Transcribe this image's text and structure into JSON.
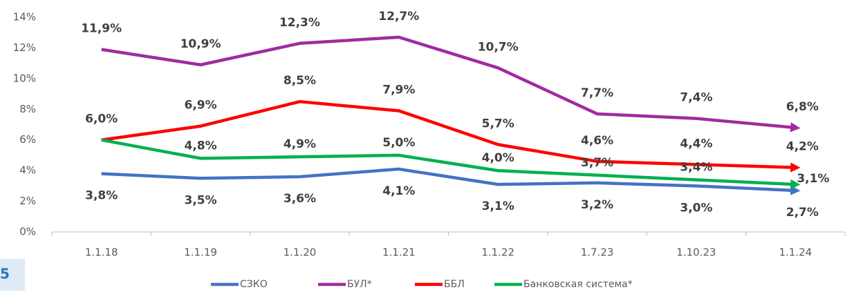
{
  "chart_data": {
    "type": "line",
    "tab_label": "5",
    "categories": [
      "1.1.18",
      "1.1.19",
      "1.1.20",
      "1.1.21",
      "1.1.22",
      "1.7.23",
      "1.10.23",
      "1.1.24"
    ],
    "ylim": [
      0,
      14
    ],
    "yticks": [
      {
        "value": 0,
        "label": "0%"
      },
      {
        "value": 2,
        "label": "2%"
      },
      {
        "value": 4,
        "label": "4%"
      },
      {
        "value": 6,
        "label": "6%"
      },
      {
        "value": 8,
        "label": "8%"
      },
      {
        "value": 10,
        "label": "10%"
      },
      {
        "value": 12,
        "label": "12%"
      },
      {
        "value": 14,
        "label": "14%"
      }
    ],
    "grid": false,
    "legend": "bottom",
    "series": [
      {
        "name": "СЗКО",
        "color": "#4472c4",
        "values": [
          3.8,
          3.5,
          3.6,
          4.1,
          3.1,
          3.2,
          3.0,
          2.7
        ],
        "value_labels": [
          "3,8%",
          "3,5%",
          "3,6%",
          "4,1%",
          "3,1%",
          "3,2%",
          "3,0%",
          "2,7%"
        ]
      },
      {
        "name": "БУЛ*",
        "color": "#a02ba0",
        "values": [
          11.9,
          10.9,
          12.3,
          12.7,
          10.7,
          7.7,
          7.4,
          6.8
        ],
        "value_labels": [
          "11,9%",
          "10,9%",
          "12,3%",
          "12,7%",
          "10,7%",
          "7,7%",
          "7,4%",
          "6,8%"
        ]
      },
      {
        "name": "ББЛ",
        "color": "#ff0000",
        "values": [
          6.0,
          6.9,
          8.5,
          7.9,
          5.7,
          4.6,
          4.4,
          4.2
        ],
        "value_labels": [
          "6,0%",
          "6,9%",
          "8,5%",
          "7,9%",
          "5,7%",
          "4,6%",
          "4,4%",
          "4,2%"
        ]
      },
      {
        "name": "Банковская система*",
        "color": "#00b050",
        "values": [
          6.0,
          4.8,
          4.9,
          5.0,
          4.0,
          3.7,
          3.4,
          3.1
        ],
        "value_labels": [
          null,
          "4,8%",
          "4,9%",
          "5,0%",
          "4,0%",
          "3,7%",
          "3,4%",
          "3,1%"
        ]
      }
    ]
  }
}
